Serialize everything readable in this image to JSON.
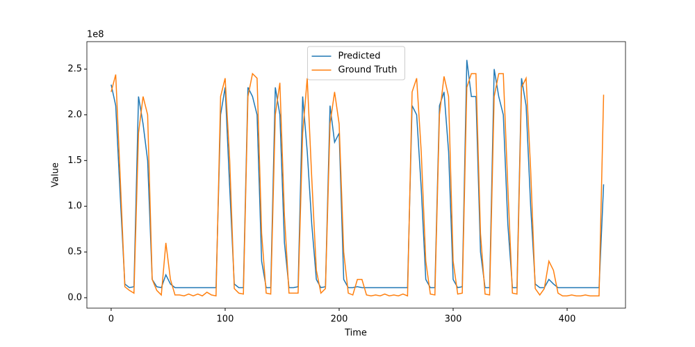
{
  "chart_data": {
    "type": "line",
    "xlabel": "Time",
    "ylabel": "Value",
    "y_offset_text": "1e8",
    "x": [
      0,
      4,
      8,
      12,
      16,
      20,
      24,
      28,
      32,
      36,
      40,
      44,
      48,
      52,
      56,
      60,
      64,
      68,
      72,
      76,
      80,
      84,
      88,
      92,
      96,
      100,
      104,
      108,
      112,
      116,
      120,
      124,
      128,
      132,
      136,
      140,
      144,
      148,
      152,
      156,
      160,
      164,
      168,
      172,
      176,
      180,
      184,
      188,
      192,
      196,
      200,
      204,
      208,
      212,
      216,
      220,
      224,
      228,
      232,
      236,
      240,
      244,
      248,
      252,
      256,
      260,
      264,
      268,
      272,
      276,
      280,
      284,
      288,
      292,
      296,
      300,
      304,
      308,
      312,
      316,
      320,
      324,
      328,
      332,
      336,
      340,
      344,
      348,
      352,
      356,
      360,
      364,
      368,
      372,
      376,
      380,
      384,
      388,
      392,
      396,
      400,
      404,
      408,
      412,
      416,
      420,
      424,
      428,
      432
    ],
    "series": [
      {
        "name": "Predicted",
        "color": "#1f77b4",
        "values": [
          2.33,
          2.1,
          1.1,
          0.15,
          0.11,
          0.12,
          2.2,
          1.9,
          1.5,
          0.2,
          0.12,
          0.11,
          0.25,
          0.15,
          0.11,
          0.11,
          0.11,
          0.11,
          0.11,
          0.11,
          0.11,
          0.11,
          0.11,
          0.11,
          2.0,
          2.3,
          1.2,
          0.15,
          0.11,
          0.11,
          2.3,
          2.2,
          2.0,
          0.4,
          0.11,
          0.11,
          2.3,
          2.0,
          0.6,
          0.11,
          0.11,
          0.12,
          2.2,
          1.6,
          0.8,
          0.2,
          0.11,
          0.12,
          2.1,
          1.7,
          1.8,
          0.2,
          0.11,
          0.11,
          0.12,
          0.11,
          0.11,
          0.11,
          0.11,
          0.11,
          0.11,
          0.11,
          0.11,
          0.11,
          0.11,
          0.11,
          2.1,
          2.0,
          1.2,
          0.2,
          0.11,
          0.11,
          2.1,
          2.25,
          1.6,
          0.2,
          0.11,
          0.12,
          2.6,
          2.2,
          2.2,
          0.5,
          0.11,
          0.11,
          2.5,
          2.2,
          2.0,
          0.8,
          0.11,
          0.11,
          2.4,
          2.1,
          1.0,
          0.15,
          0.11,
          0.11,
          0.2,
          0.15,
          0.11,
          0.11,
          0.11,
          0.11,
          0.11,
          0.11,
          0.11,
          0.11,
          0.11,
          0.11,
          1.24
        ]
      },
      {
        "name": "Ground Truth",
        "color": "#ff7f0e",
        "values": [
          2.25,
          2.44,
          1.3,
          0.12,
          0.08,
          0.05,
          1.8,
          2.2,
          2.0,
          0.2,
          0.08,
          0.03,
          0.6,
          0.2,
          0.03,
          0.03,
          0.02,
          0.04,
          0.02,
          0.04,
          0.02,
          0.06,
          0.03,
          0.02,
          2.2,
          2.4,
          1.5,
          0.1,
          0.05,
          0.04,
          2.2,
          2.45,
          2.4,
          0.7,
          0.05,
          0.04,
          2.0,
          2.35,
          0.9,
          0.05,
          0.05,
          0.05,
          1.8,
          2.4,
          1.3,
          0.3,
          0.05,
          0.1,
          1.9,
          2.25,
          1.9,
          0.5,
          0.05,
          0.03,
          0.2,
          0.2,
          0.03,
          0.02,
          0.03,
          0.02,
          0.04,
          0.02,
          0.03,
          0.02,
          0.04,
          0.02,
          2.25,
          2.4,
          1.6,
          0.4,
          0.04,
          0.03,
          2.0,
          2.42,
          2.2,
          0.4,
          0.04,
          0.05,
          2.3,
          2.45,
          2.45,
          0.7,
          0.04,
          0.03,
          2.2,
          2.45,
          2.45,
          1.2,
          0.05,
          0.04,
          2.3,
          2.4,
          1.4,
          0.1,
          0.03,
          0.1,
          0.4,
          0.3,
          0.05,
          0.02,
          0.02,
          0.03,
          0.02,
          0.02,
          0.03,
          0.02,
          0.02,
          0.02,
          2.22
        ]
      }
    ],
    "xlim": [
      -21.3,
      451.2
    ],
    "ylim": [
      -0.114,
      2.8
    ],
    "xticks": [
      0,
      100,
      200,
      300,
      400
    ],
    "yticks": [
      {
        "value": 0,
        "label": "0.0"
      },
      0.5,
      {
        "value": 1,
        "label": "1.0"
      },
      1.5,
      {
        "value": 2,
        "label": "2.0"
      },
      2.5
    ],
    "legend": "upper center"
  }
}
